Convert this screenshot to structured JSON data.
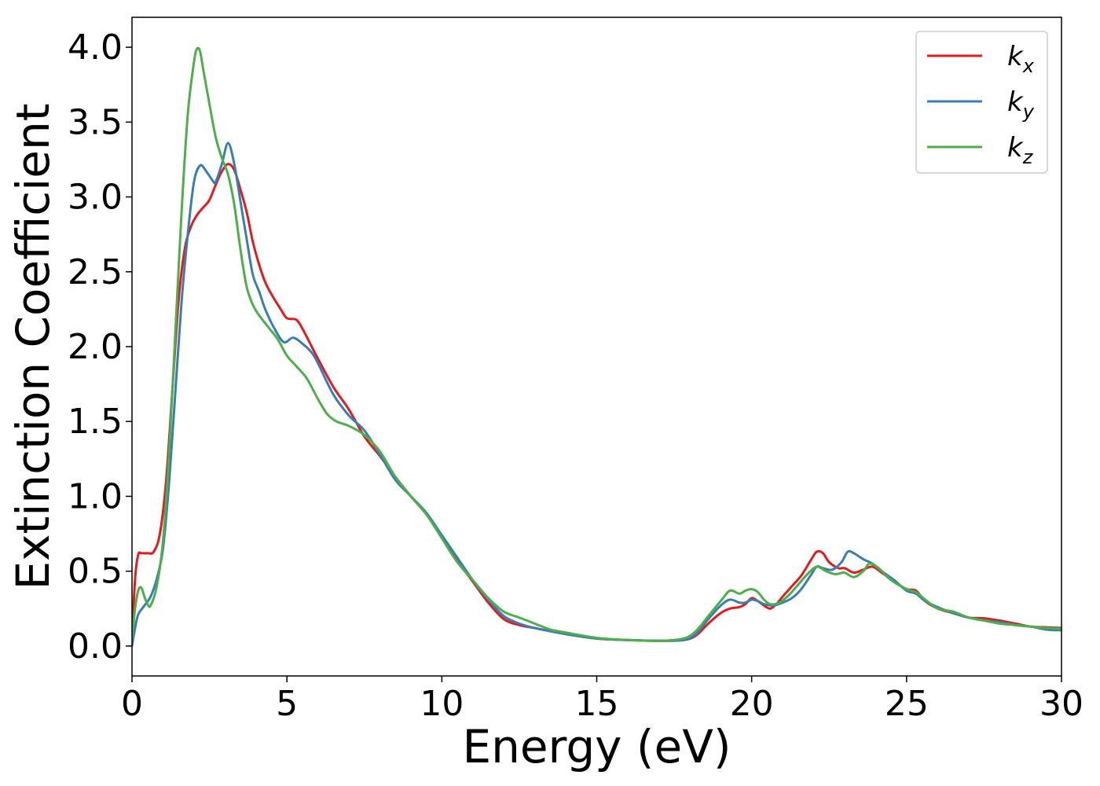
{
  "chart_data": {
    "type": "line",
    "title": "",
    "xlabel": "Energy (eV)",
    "ylabel": "Extinction Coefficient",
    "xlim": [
      0,
      30
    ],
    "ylim": [
      -0.2,
      4.2
    ],
    "xticks": [
      0,
      5,
      10,
      15,
      20,
      25,
      30
    ],
    "xtick_labels": [
      "0",
      "5",
      "10",
      "15",
      "20",
      "25",
      "30"
    ],
    "yticks": [
      0.0,
      0.5,
      1.0,
      1.5,
      2.0,
      2.5,
      3.0,
      3.5,
      4.0
    ],
    "ytick_labels": [
      "0.0",
      "0.5",
      "1.0",
      "1.5",
      "2.0",
      "2.5",
      "3.0",
      "3.5",
      "4.0"
    ],
    "grid": false,
    "legend_position": "top-right",
    "series": [
      {
        "name": "k_x",
        "label_base": "k",
        "label_sub": "x",
        "color": "#e41a1c",
        "points": [
          [
            0,
            0.05
          ],
          [
            0.1,
            0.45
          ],
          [
            0.2,
            0.61
          ],
          [
            0.3,
            0.62
          ],
          [
            0.5,
            0.62
          ],
          [
            0.7,
            0.63
          ],
          [
            0.9,
            0.75
          ],
          [
            1.1,
            1.1
          ],
          [
            1.3,
            1.7
          ],
          [
            1.5,
            2.3
          ],
          [
            1.7,
            2.65
          ],
          [
            1.9,
            2.8
          ],
          [
            2.1,
            2.88
          ],
          [
            2.3,
            2.93
          ],
          [
            2.5,
            2.98
          ],
          [
            2.7,
            3.08
          ],
          [
            2.9,
            3.17
          ],
          [
            3.1,
            3.22
          ],
          [
            3.3,
            3.18
          ],
          [
            3.5,
            3.05
          ],
          [
            3.7,
            2.9
          ],
          [
            3.9,
            2.7
          ],
          [
            4.1,
            2.55
          ],
          [
            4.3,
            2.43
          ],
          [
            4.5,
            2.35
          ],
          [
            4.8,
            2.25
          ],
          [
            5.0,
            2.19
          ],
          [
            5.3,
            2.18
          ],
          [
            5.5,
            2.12
          ],
          [
            5.8,
            2.0
          ],
          [
            6.0,
            1.92
          ],
          [
            6.5,
            1.73
          ],
          [
            7.0,
            1.58
          ],
          [
            7.5,
            1.4
          ],
          [
            8.0,
            1.27
          ],
          [
            8.5,
            1.13
          ],
          [
            9.0,
            1.0
          ],
          [
            9.5,
            0.88
          ],
          [
            10.0,
            0.73
          ],
          [
            10.5,
            0.57
          ],
          [
            11.0,
            0.43
          ],
          [
            11.5,
            0.29
          ],
          [
            12.0,
            0.18
          ],
          [
            12.5,
            0.14
          ],
          [
            13.0,
            0.12
          ],
          [
            14.0,
            0.08
          ],
          [
            15.0,
            0.05
          ],
          [
            16.0,
            0.04
          ],
          [
            17.0,
            0.035
          ],
          [
            17.8,
            0.04
          ],
          [
            18.2,
            0.07
          ],
          [
            18.6,
            0.15
          ],
          [
            19.0,
            0.22
          ],
          [
            19.3,
            0.25
          ],
          [
            19.6,
            0.26
          ],
          [
            19.8,
            0.28
          ],
          [
            20.0,
            0.32
          ],
          [
            20.2,
            0.3
          ],
          [
            20.4,
            0.27
          ],
          [
            20.6,
            0.25
          ],
          [
            20.8,
            0.28
          ],
          [
            21.0,
            0.33
          ],
          [
            21.3,
            0.4
          ],
          [
            21.6,
            0.47
          ],
          [
            21.9,
            0.57
          ],
          [
            22.1,
            0.63
          ],
          [
            22.3,
            0.62
          ],
          [
            22.5,
            0.56
          ],
          [
            22.8,
            0.52
          ],
          [
            23.0,
            0.52
          ],
          [
            23.3,
            0.49
          ],
          [
            23.6,
            0.51
          ],
          [
            23.9,
            0.53
          ],
          [
            24.2,
            0.49
          ],
          [
            24.6,
            0.43
          ],
          [
            25.0,
            0.38
          ],
          [
            25.3,
            0.37
          ],
          [
            25.6,
            0.3
          ],
          [
            26.0,
            0.25
          ],
          [
            26.5,
            0.22
          ],
          [
            27.0,
            0.19
          ],
          [
            27.5,
            0.185
          ],
          [
            28.0,
            0.17
          ],
          [
            28.5,
            0.15
          ],
          [
            29.0,
            0.13
          ],
          [
            29.5,
            0.125
          ],
          [
            30.0,
            0.12
          ]
        ]
      },
      {
        "name": "k_y",
        "label_base": "k",
        "label_sub": "y",
        "color": "#377eb8",
        "points": [
          [
            0,
            0.0
          ],
          [
            0.1,
            0.12
          ],
          [
            0.2,
            0.21
          ],
          [
            0.4,
            0.27
          ],
          [
            0.6,
            0.33
          ],
          [
            0.8,
            0.45
          ],
          [
            1.0,
            0.65
          ],
          [
            1.2,
            1.1
          ],
          [
            1.4,
            1.7
          ],
          [
            1.6,
            2.3
          ],
          [
            1.8,
            2.75
          ],
          [
            2.0,
            3.1
          ],
          [
            2.2,
            3.21
          ],
          [
            2.4,
            3.17
          ],
          [
            2.6,
            3.11
          ],
          [
            2.7,
            3.1
          ],
          [
            2.9,
            3.22
          ],
          [
            3.1,
            3.36
          ],
          [
            3.3,
            3.22
          ],
          [
            3.5,
            2.97
          ],
          [
            3.7,
            2.72
          ],
          [
            3.9,
            2.48
          ],
          [
            4.1,
            2.37
          ],
          [
            4.3,
            2.25
          ],
          [
            4.6,
            2.12
          ],
          [
            4.9,
            2.03
          ],
          [
            5.2,
            2.06
          ],
          [
            5.5,
            2.02
          ],
          [
            5.8,
            1.96
          ],
          [
            6.0,
            1.89
          ],
          [
            6.5,
            1.68
          ],
          [
            7.0,
            1.54
          ],
          [
            7.5,
            1.44
          ],
          [
            8.0,
            1.28
          ],
          [
            8.5,
            1.11
          ],
          [
            9.0,
            1.0
          ],
          [
            9.5,
            0.89
          ],
          [
            10.0,
            0.74
          ],
          [
            10.5,
            0.59
          ],
          [
            11.0,
            0.44
          ],
          [
            11.5,
            0.31
          ],
          [
            12.0,
            0.2
          ],
          [
            12.5,
            0.15
          ],
          [
            13.0,
            0.12
          ],
          [
            14.0,
            0.08
          ],
          [
            15.0,
            0.05
          ],
          [
            16.0,
            0.04
          ],
          [
            17.0,
            0.035
          ],
          [
            17.8,
            0.04
          ],
          [
            18.2,
            0.08
          ],
          [
            18.6,
            0.18
          ],
          [
            19.0,
            0.27
          ],
          [
            19.3,
            0.31
          ],
          [
            19.6,
            0.29
          ],
          [
            19.8,
            0.29
          ],
          [
            20.0,
            0.31
          ],
          [
            20.2,
            0.3
          ],
          [
            20.4,
            0.28
          ],
          [
            20.7,
            0.27
          ],
          [
            21.0,
            0.29
          ],
          [
            21.3,
            0.32
          ],
          [
            21.6,
            0.38
          ],
          [
            21.9,
            0.47
          ],
          [
            22.1,
            0.53
          ],
          [
            22.3,
            0.52
          ],
          [
            22.6,
            0.51
          ],
          [
            22.9,
            0.56
          ],
          [
            23.1,
            0.63
          ],
          [
            23.3,
            0.62
          ],
          [
            23.6,
            0.58
          ],
          [
            23.9,
            0.55
          ],
          [
            24.2,
            0.5
          ],
          [
            24.6,
            0.44
          ],
          [
            25.0,
            0.37
          ],
          [
            25.3,
            0.35
          ],
          [
            25.6,
            0.3
          ],
          [
            26.0,
            0.26
          ],
          [
            26.5,
            0.22
          ],
          [
            27.0,
            0.19
          ],
          [
            27.5,
            0.17
          ],
          [
            28.0,
            0.16
          ],
          [
            28.5,
            0.14
          ],
          [
            29.0,
            0.13
          ],
          [
            29.5,
            0.11
          ],
          [
            30.0,
            0.105
          ]
        ]
      },
      {
        "name": "k_z",
        "label_base": "k",
        "label_sub": "z",
        "color": "#4daf4a",
        "points": [
          [
            0,
            0.05
          ],
          [
            0.1,
            0.25
          ],
          [
            0.2,
            0.37
          ],
          [
            0.3,
            0.39
          ],
          [
            0.4,
            0.33
          ],
          [
            0.5,
            0.28
          ],
          [
            0.6,
            0.27
          ],
          [
            0.8,
            0.4
          ],
          [
            1.0,
            0.7
          ],
          [
            1.2,
            1.3
          ],
          [
            1.4,
            2.1
          ],
          [
            1.6,
            2.9
          ],
          [
            1.8,
            3.55
          ],
          [
            2.0,
            3.9
          ],
          [
            2.1,
            3.99
          ],
          [
            2.2,
            3.97
          ],
          [
            2.3,
            3.85
          ],
          [
            2.5,
            3.62
          ],
          [
            2.7,
            3.4
          ],
          [
            2.9,
            3.26
          ],
          [
            3.1,
            3.15
          ],
          [
            3.3,
            2.95
          ],
          [
            3.5,
            2.65
          ],
          [
            3.7,
            2.4
          ],
          [
            3.9,
            2.28
          ],
          [
            4.1,
            2.21
          ],
          [
            4.4,
            2.13
          ],
          [
            4.7,
            2.05
          ],
          [
            5.0,
            1.94
          ],
          [
            5.3,
            1.87
          ],
          [
            5.6,
            1.8
          ],
          [
            5.8,
            1.73
          ],
          [
            6.0,
            1.65
          ],
          [
            6.3,
            1.55
          ],
          [
            6.6,
            1.5
          ],
          [
            7.0,
            1.47
          ],
          [
            7.5,
            1.41
          ],
          [
            8.0,
            1.3
          ],
          [
            8.5,
            1.13
          ],
          [
            9.0,
            1.0
          ],
          [
            9.5,
            0.88
          ],
          [
            10.0,
            0.72
          ],
          [
            10.5,
            0.56
          ],
          [
            11.0,
            0.44
          ],
          [
            11.5,
            0.32
          ],
          [
            12.0,
            0.23
          ],
          [
            12.5,
            0.19
          ],
          [
            13.0,
            0.15
          ],
          [
            13.5,
            0.11
          ],
          [
            14.0,
            0.09
          ],
          [
            15.0,
            0.055
          ],
          [
            16.0,
            0.04
          ],
          [
            17.0,
            0.035
          ],
          [
            17.8,
            0.05
          ],
          [
            18.2,
            0.1
          ],
          [
            18.6,
            0.2
          ],
          [
            19.0,
            0.3
          ],
          [
            19.3,
            0.37
          ],
          [
            19.6,
            0.35
          ],
          [
            19.8,
            0.37
          ],
          [
            20.0,
            0.38
          ],
          [
            20.2,
            0.36
          ],
          [
            20.4,
            0.31
          ],
          [
            20.6,
            0.28
          ],
          [
            20.9,
            0.29
          ],
          [
            21.2,
            0.34
          ],
          [
            21.5,
            0.41
          ],
          [
            21.8,
            0.48
          ],
          [
            22.1,
            0.53
          ],
          [
            22.4,
            0.5
          ],
          [
            22.7,
            0.48
          ],
          [
            23.0,
            0.49
          ],
          [
            23.3,
            0.46
          ],
          [
            23.6,
            0.5
          ],
          [
            23.8,
            0.55
          ],
          [
            24.1,
            0.52
          ],
          [
            24.5,
            0.44
          ],
          [
            25.0,
            0.38
          ],
          [
            25.3,
            0.36
          ],
          [
            25.6,
            0.31
          ],
          [
            26.0,
            0.25
          ],
          [
            26.5,
            0.23
          ],
          [
            27.0,
            0.19
          ],
          [
            27.5,
            0.17
          ],
          [
            28.0,
            0.15
          ],
          [
            28.5,
            0.14
          ],
          [
            29.0,
            0.13
          ],
          [
            29.5,
            0.12
          ],
          [
            30.0,
            0.115
          ]
        ]
      }
    ]
  }
}
